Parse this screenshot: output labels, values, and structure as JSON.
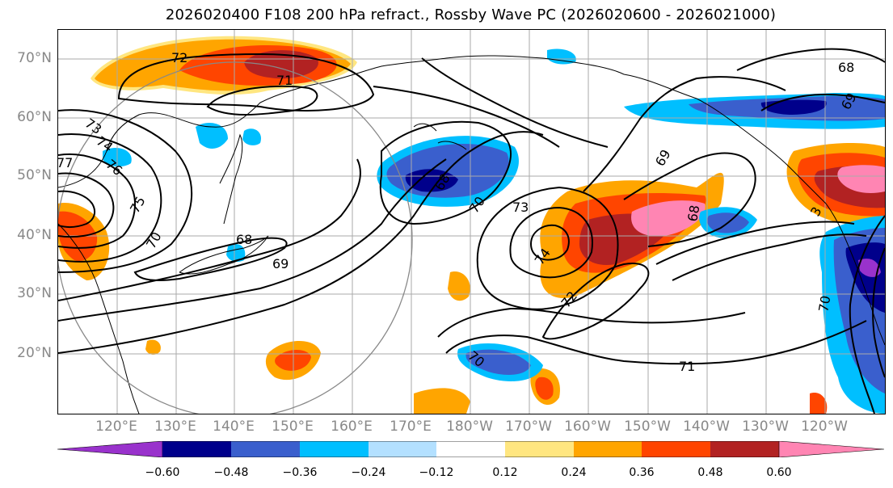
{
  "title": "2026020400 F108 200 hPa refract., Rossby Wave PC (2026020600 - 2026021000)",
  "lat_labels": [
    "70°N",
    "60°N",
    "50°N",
    "40°N",
    "30°N",
    "20°N"
  ],
  "lon_labels": [
    "120°E",
    "130°E",
    "140°E",
    "150°E",
    "160°E",
    "170°E",
    "180°W",
    "170°W",
    "160°W",
    "150°W",
    "140°W",
    "130°W",
    "120°W"
  ],
  "contour_labels": [
    "72",
    "71",
    "73",
    "74",
    "76",
    "75",
    "70",
    "68",
    "69",
    "68",
    "70",
    "73",
    "74",
    "69",
    "68",
    "73",
    "72",
    "70",
    "70",
    "71",
    "68",
    "69",
    "3",
    "77"
  ],
  "colorbar": {
    "ticks": [
      "−0.60",
      "−0.48",
      "−0.36",
      "−0.24",
      "−0.12",
      "0.12",
      "0.24",
      "0.36",
      "0.48",
      "0.60"
    ],
    "colors": [
      "#9932cc",
      "#00008b",
      "#3a5fcd",
      "#00bfff",
      "#b3e0ff",
      "#ffffff",
      "#ffe680",
      "#ffa500",
      "#ff4500",
      "#b22222",
      "#ff85b3"
    ]
  },
  "palette": {
    "purple": "#9932cc",
    "navy": "#00008b",
    "royal": "#3a5fcd",
    "sky": "#00bfff",
    "pale": "#b3e0ff",
    "yellow": "#ffe680",
    "orange": "#ffa500",
    "red": "#ff4500",
    "darkred": "#b22222",
    "pink": "#ff85b3",
    "grid": "#aaaaaa",
    "axis_label": "#888888"
  }
}
